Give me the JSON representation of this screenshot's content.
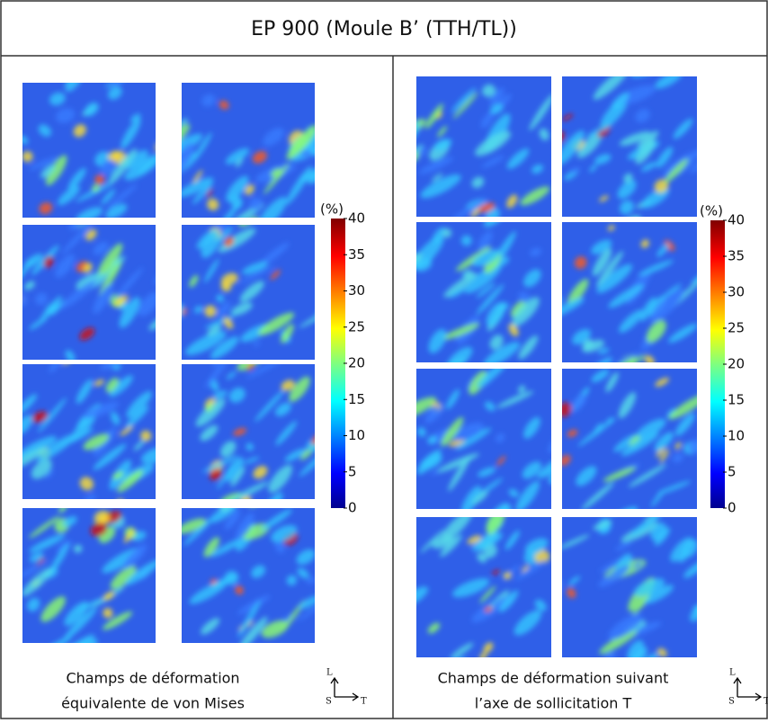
{
  "title": "EP 900 (Moule B’ (TTH/TL))",
  "panels": [
    {
      "caption": [
        "Champs de déformation",
        "équivalente de von Mises"
      ],
      "colorbar": {
        "unit": "(%)",
        "range": [
          0,
          40
        ],
        "ticks": [
          0,
          5,
          10,
          15,
          20,
          25,
          30,
          35,
          40
        ]
      },
      "axes": {
        "up": "L",
        "out": "S",
        "right": "T"
      }
    },
    {
      "caption": [
        "Champs de déformation suivant",
        "l’axe de sollicitation T"
      ],
      "colorbar": {
        "unit": "(%)",
        "range": [
          0,
          40
        ],
        "ticks": [
          0,
          5,
          10,
          15,
          20,
          25,
          30,
          35,
          40
        ]
      },
      "axes": {
        "up": "L",
        "out": "S",
        "right": "T"
      }
    }
  ]
}
